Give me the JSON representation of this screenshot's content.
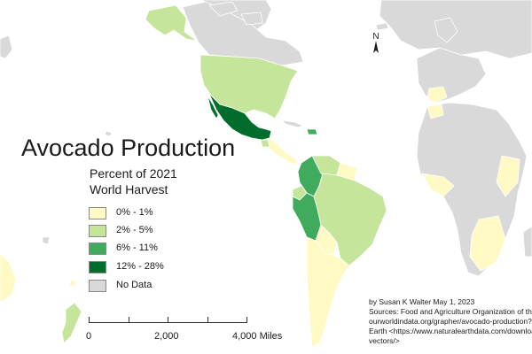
{
  "title": "Avocado Production",
  "subtitle_line1": "Percent of 2021",
  "subtitle_line2": "World Harvest",
  "legend": [
    {
      "label": "0% - 1%",
      "color": "#fff9c4"
    },
    {
      "label": "2% - 5%",
      "color": "#c5e59b"
    },
    {
      "label": "6% - 11%",
      "color": "#41ab5d"
    },
    {
      "label": "12% - 28%",
      "color": "#006d2c"
    },
    {
      "label": "No Data",
      "color": "#d9d9d9"
    }
  ],
  "north_arrow": {
    "label": "N",
    "icon": "north-arrow-icon"
  },
  "scale_bar": {
    "labels": [
      "0",
      "2,000",
      "4,000 Miles"
    ]
  },
  "credits": {
    "author": "by Susan K Walter May 1, 2023",
    "sources": "Sources: Food and Agriculture Organization of the",
    "url1": "ourworldindata.org/grapher/avocado-production?",
    "earth": "Earth <https://www.naturalearthdata.com/downloa",
    "vectors": "vectors/>"
  },
  "colors": {
    "no_data": "#d9d9d9",
    "class_0_1": "#fff9c4",
    "class_2_5": "#c5e59b",
    "class_6_11": "#41ab5d",
    "class_12_28": "#006d2c",
    "border": "#ffffff",
    "ocean": "#ffffff"
  }
}
